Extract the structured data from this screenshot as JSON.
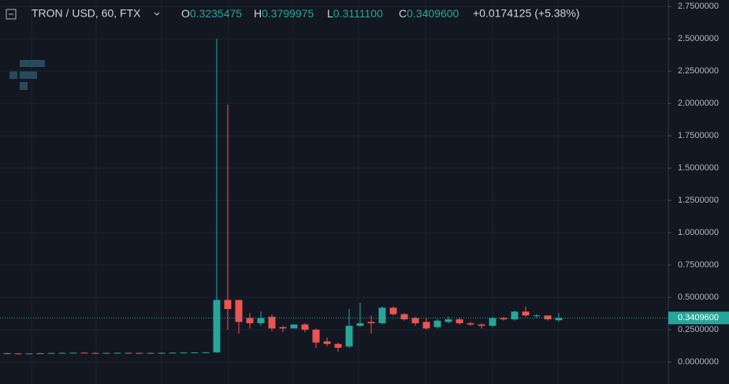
{
  "chart_data": {
    "type": "candlestick",
    "symbol": "TRON / USD, 60, FTX",
    "ohlc_legend": [
      {
        "key": "O",
        "text": "0.3235475"
      },
      {
        "key": "H",
        "text": "0.3799975"
      },
      {
        "key": "L",
        "text": "0.3111100"
      },
      {
        "key": "C",
        "text": "0.3409600"
      }
    ],
    "change": "+0.0174125 (+5.38%)",
    "up_color": "#26a69a",
    "down_color": "#ef5350",
    "open": [
      0.068,
      0.066,
      0.064,
      0.066,
      0.068,
      0.07,
      0.071,
      0.072,
      0.07,
      0.069,
      0.07,
      0.071,
      0.07,
      0.069,
      0.07,
      0.071,
      0.072,
      0.073,
      0.074,
      0.075,
      0.48,
      0.48,
      0.34,
      0.3,
      0.35,
      0.27,
      0.26,
      0.29,
      0.25,
      0.16,
      0.14,
      0.12,
      0.28,
      0.31,
      0.3,
      0.42,
      0.37,
      0.34,
      0.31,
      0.27,
      0.31,
      0.33,
      0.3,
      0.29,
      0.28,
      0.34,
      0.33,
      0.39,
      0.36,
      0.36,
      0.3235475
    ],
    "high": [
      0.072,
      0.07,
      0.068,
      0.07,
      0.072,
      0.074,
      0.075,
      0.076,
      0.074,
      0.073,
      0.074,
      0.075,
      0.074,
      0.073,
      0.074,
      0.075,
      0.076,
      0.077,
      0.078,
      2.5,
      1.99,
      0.48,
      0.38,
      0.39,
      0.37,
      0.28,
      0.29,
      0.3,
      0.26,
      0.19,
      0.15,
      0.41,
      0.46,
      0.36,
      0.43,
      0.43,
      0.38,
      0.35,
      0.34,
      0.33,
      0.35,
      0.34,
      0.31,
      0.3,
      0.35,
      0.35,
      0.4,
      0.43,
      0.37,
      0.36,
      0.3799975
    ],
    "low": [
      0.064,
      0.062,
      0.06,
      0.062,
      0.064,
      0.066,
      0.067,
      0.068,
      0.066,
      0.065,
      0.066,
      0.067,
      0.066,
      0.065,
      0.066,
      0.067,
      0.068,
      0.069,
      0.07,
      0.07,
      0.25,
      0.22,
      0.26,
      0.28,
      0.24,
      0.23,
      0.26,
      0.23,
      0.11,
      0.12,
      0.08,
      0.11,
      0.27,
      0.22,
      0.29,
      0.36,
      0.32,
      0.28,
      0.25,
      0.26,
      0.3,
      0.29,
      0.28,
      0.26,
      0.27,
      0.32,
      0.32,
      0.35,
      0.34,
      0.32,
      0.31111
    ],
    "close": [
      0.066,
      0.064,
      0.066,
      0.068,
      0.07,
      0.071,
      0.072,
      0.07,
      0.069,
      0.07,
      0.071,
      0.07,
      0.069,
      0.07,
      0.071,
      0.072,
      0.073,
      0.074,
      0.075,
      0.48,
      0.41,
      0.31,
      0.3,
      0.34,
      0.26,
      0.26,
      0.29,
      0.25,
      0.15,
      0.14,
      0.11,
      0.28,
      0.3,
      0.3,
      0.42,
      0.37,
      0.33,
      0.3,
      0.26,
      0.32,
      0.33,
      0.3,
      0.29,
      0.28,
      0.34,
      0.33,
      0.39,
      0.36,
      0.36,
      0.33,
      0.34096
    ],
    "ylim": [
      -0.17,
      2.8
    ],
    "yticks": [
      {
        "value": 0,
        "label": "0.0000000"
      },
      {
        "value": 0.25,
        "label": "0.2500000"
      },
      {
        "value": 0.5,
        "label": "0.5000000"
      },
      {
        "value": 0.75,
        "label": "0.7500000"
      },
      {
        "value": 1,
        "label": "1.0000000"
      },
      {
        "value": 1.25,
        "label": "1.2500000"
      },
      {
        "value": 1.5,
        "label": "1.5000000"
      },
      {
        "value": 1.75,
        "label": "1.7500000"
      },
      {
        "value": 2,
        "label": "2.0000000"
      },
      {
        "value": 2.25,
        "label": "2.2500000"
      },
      {
        "value": 2.5,
        "label": "2.5000000"
      },
      {
        "value": 2.75,
        "label": "2.7500000"
      }
    ],
    "last_price": {
      "value": 0.34096,
      "label": "0.3409600"
    },
    "grid": true
  }
}
